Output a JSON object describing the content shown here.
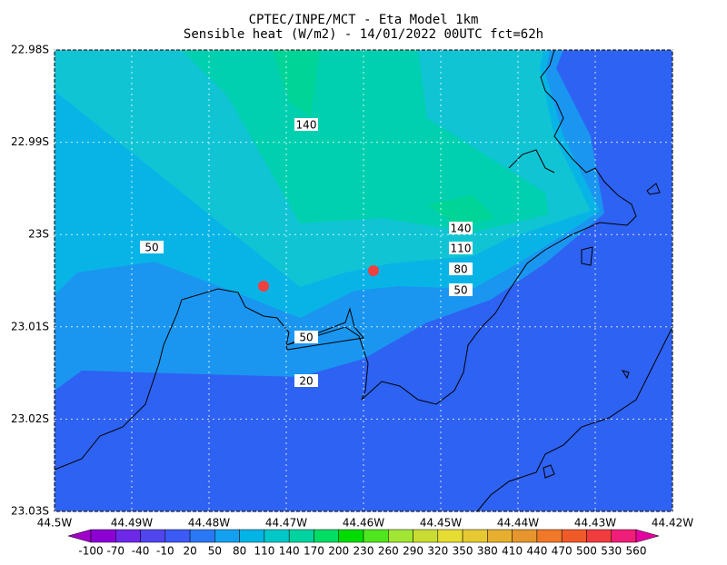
{
  "chart_data": {
    "type": "contour-map",
    "title": "CPTEC/INPE/MCT -  Eta Model 1km",
    "subtitle": "Sensible heat (W/m2) - 14/01/2022 00UTC fct=62h",
    "xlim": [
      -44.5,
      -44.42
    ],
    "ylim": [
      -23.03,
      -22.98
    ],
    "xticks": [
      {
        "value": -44.5,
        "label": "44.5W"
      },
      {
        "value": -44.49,
        "label": "44.49W"
      },
      {
        "value": -44.48,
        "label": "44.48W"
      },
      {
        "value": -44.47,
        "label": "44.47W"
      },
      {
        "value": -44.46,
        "label": "44.46W"
      },
      {
        "value": -44.45,
        "label": "44.45W"
      },
      {
        "value": -44.44,
        "label": "44.44W"
      },
      {
        "value": -44.43,
        "label": "44.43W"
      },
      {
        "value": -44.42,
        "label": "44.42W"
      }
    ],
    "yticks": [
      {
        "value": -22.98,
        "label": "22.98S"
      },
      {
        "value": -22.99,
        "label": "22.99S"
      },
      {
        "value": -23.0,
        "label": "23S"
      },
      {
        "value": -23.01,
        "label": "23.01S"
      },
      {
        "value": -23.02,
        "label": "23.02S"
      },
      {
        "value": -23.03,
        "label": "23.03S"
      }
    ],
    "grid": true,
    "contour_labels": [
      140,
      140,
      110,
      80,
      50,
      50,
      50,
      20
    ],
    "markers": {
      "color": "#f04040",
      "lon": [
        -44.47294,
        -44.45871
      ],
      "lat": [
        -23.00559,
        -23.00392
      ]
    },
    "colorbar": {
      "levels": [
        -100,
        -70,
        -40,
        -10,
        20,
        50,
        80,
        110,
        140,
        170,
        200,
        230,
        260,
        290,
        320,
        350,
        380,
        410,
        440,
        470,
        500,
        530,
        560
      ],
      "colors": [
        "#a000c8",
        "#8c00d4",
        "#6e28e8",
        "#5046f0",
        "#3c5af5",
        "#2a78f5",
        "#14a0f0",
        "#00b4e6",
        "#00c8c8",
        "#00d2a0",
        "#00dc64",
        "#00dc00",
        "#50e61e",
        "#a0e632",
        "#c8dc32",
        "#e6dc32",
        "#e6c832",
        "#e6af2d",
        "#e6962d",
        "#f07828",
        "#f05a28",
        "#f03c3c",
        "#f01e78",
        "#e600a0"
      ]
    }
  }
}
